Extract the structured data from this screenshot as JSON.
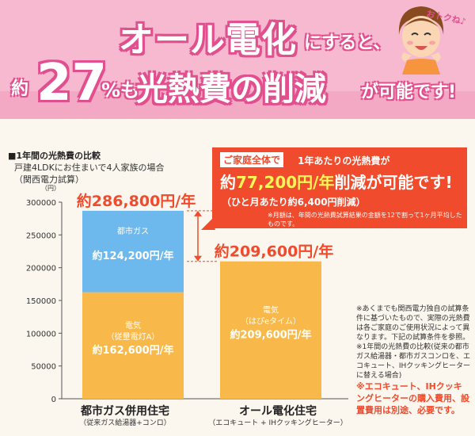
{
  "header": {
    "line1_main": "オール電化",
    "line1_suffix": "にすると、",
    "line2_yaku": "約",
    "line2_pct": "27",
    "line2_pct_sym": "%も",
    "line2_main": "光熱費の削減",
    "line2_tail": "が可能です!",
    "bubble": "おトクね♪"
  },
  "section": {
    "title": "■1年間の光熱費の比較",
    "sub1": "戸建4LDKにお住まいで4人家族の場合",
    "sub2": "（関西電力試算）"
  },
  "callout": {
    "tag": "ご家庭全体で",
    "lead": "1年あたりの光熱費が",
    "big_prefix": "約",
    "big_amount": "77,200円/年",
    "big_suffix": "削減が可能です!",
    "sub": "（ひと月あたり約6,400円削減）",
    "fine": "※月額は、年間の光熱費試算結果の金額を12で割って1ヶ月平均したものです。"
  },
  "notes": {
    "n1": "※あくまでも関西電力独自の試算条件に基づいたもので、実際の光熱費は各ご家庭のご使用状況によって異なります。下記の試算条件を参照。",
    "n2": "※1年間の光熱費の比較(従来の都市ガス給湯器・都市ガスコンロを、エコキュート、IHクッキングヒーターに替える場合)",
    "n3": "※エコキュート、IHクッキングヒーターの購入費用、設置費用は別途、必要です。"
  },
  "colors": {
    "banner": "#f6b9cf",
    "accent": "#e24f8e",
    "electric": "#f9b94a",
    "gas": "#6db8ec",
    "red": "#ef4b2c"
  },
  "chart_data": {
    "type": "bar",
    "stacked": true,
    "ylabel": "（円）",
    "ylim": [
      0,
      300000
    ],
    "yticks": [
      0,
      50000,
      100000,
      150000,
      200000,
      250000,
      300000
    ],
    "ytick_labels": [
      "0",
      "50000",
      "100000",
      "150000",
      "200000",
      "250000",
      "300000"
    ],
    "categories": [
      {
        "name": "都市ガス併用住宅",
        "sub": "（従来ガス給湯器+コンロ）",
        "total_label": "約286,800円/年"
      },
      {
        "name": "オール電化住宅",
        "sub": "（エコキュート + IHクッキングヒーター）",
        "total_label": "約209,600円/年"
      }
    ],
    "series": [
      {
        "name": "電気",
        "sub_names": [
          "（従量電灯A）",
          "（はぴeタイム）"
        ],
        "values": [
          162600,
          209600
        ],
        "labels": [
          "約162,600円/年",
          "約209,600円/年"
        ]
      },
      {
        "name": "都市ガス",
        "values": [
          124200,
          0
        ],
        "labels": [
          "約124,200円/年",
          ""
        ]
      }
    ],
    "totals": [
      286800,
      209600
    ],
    "grid": false
  }
}
